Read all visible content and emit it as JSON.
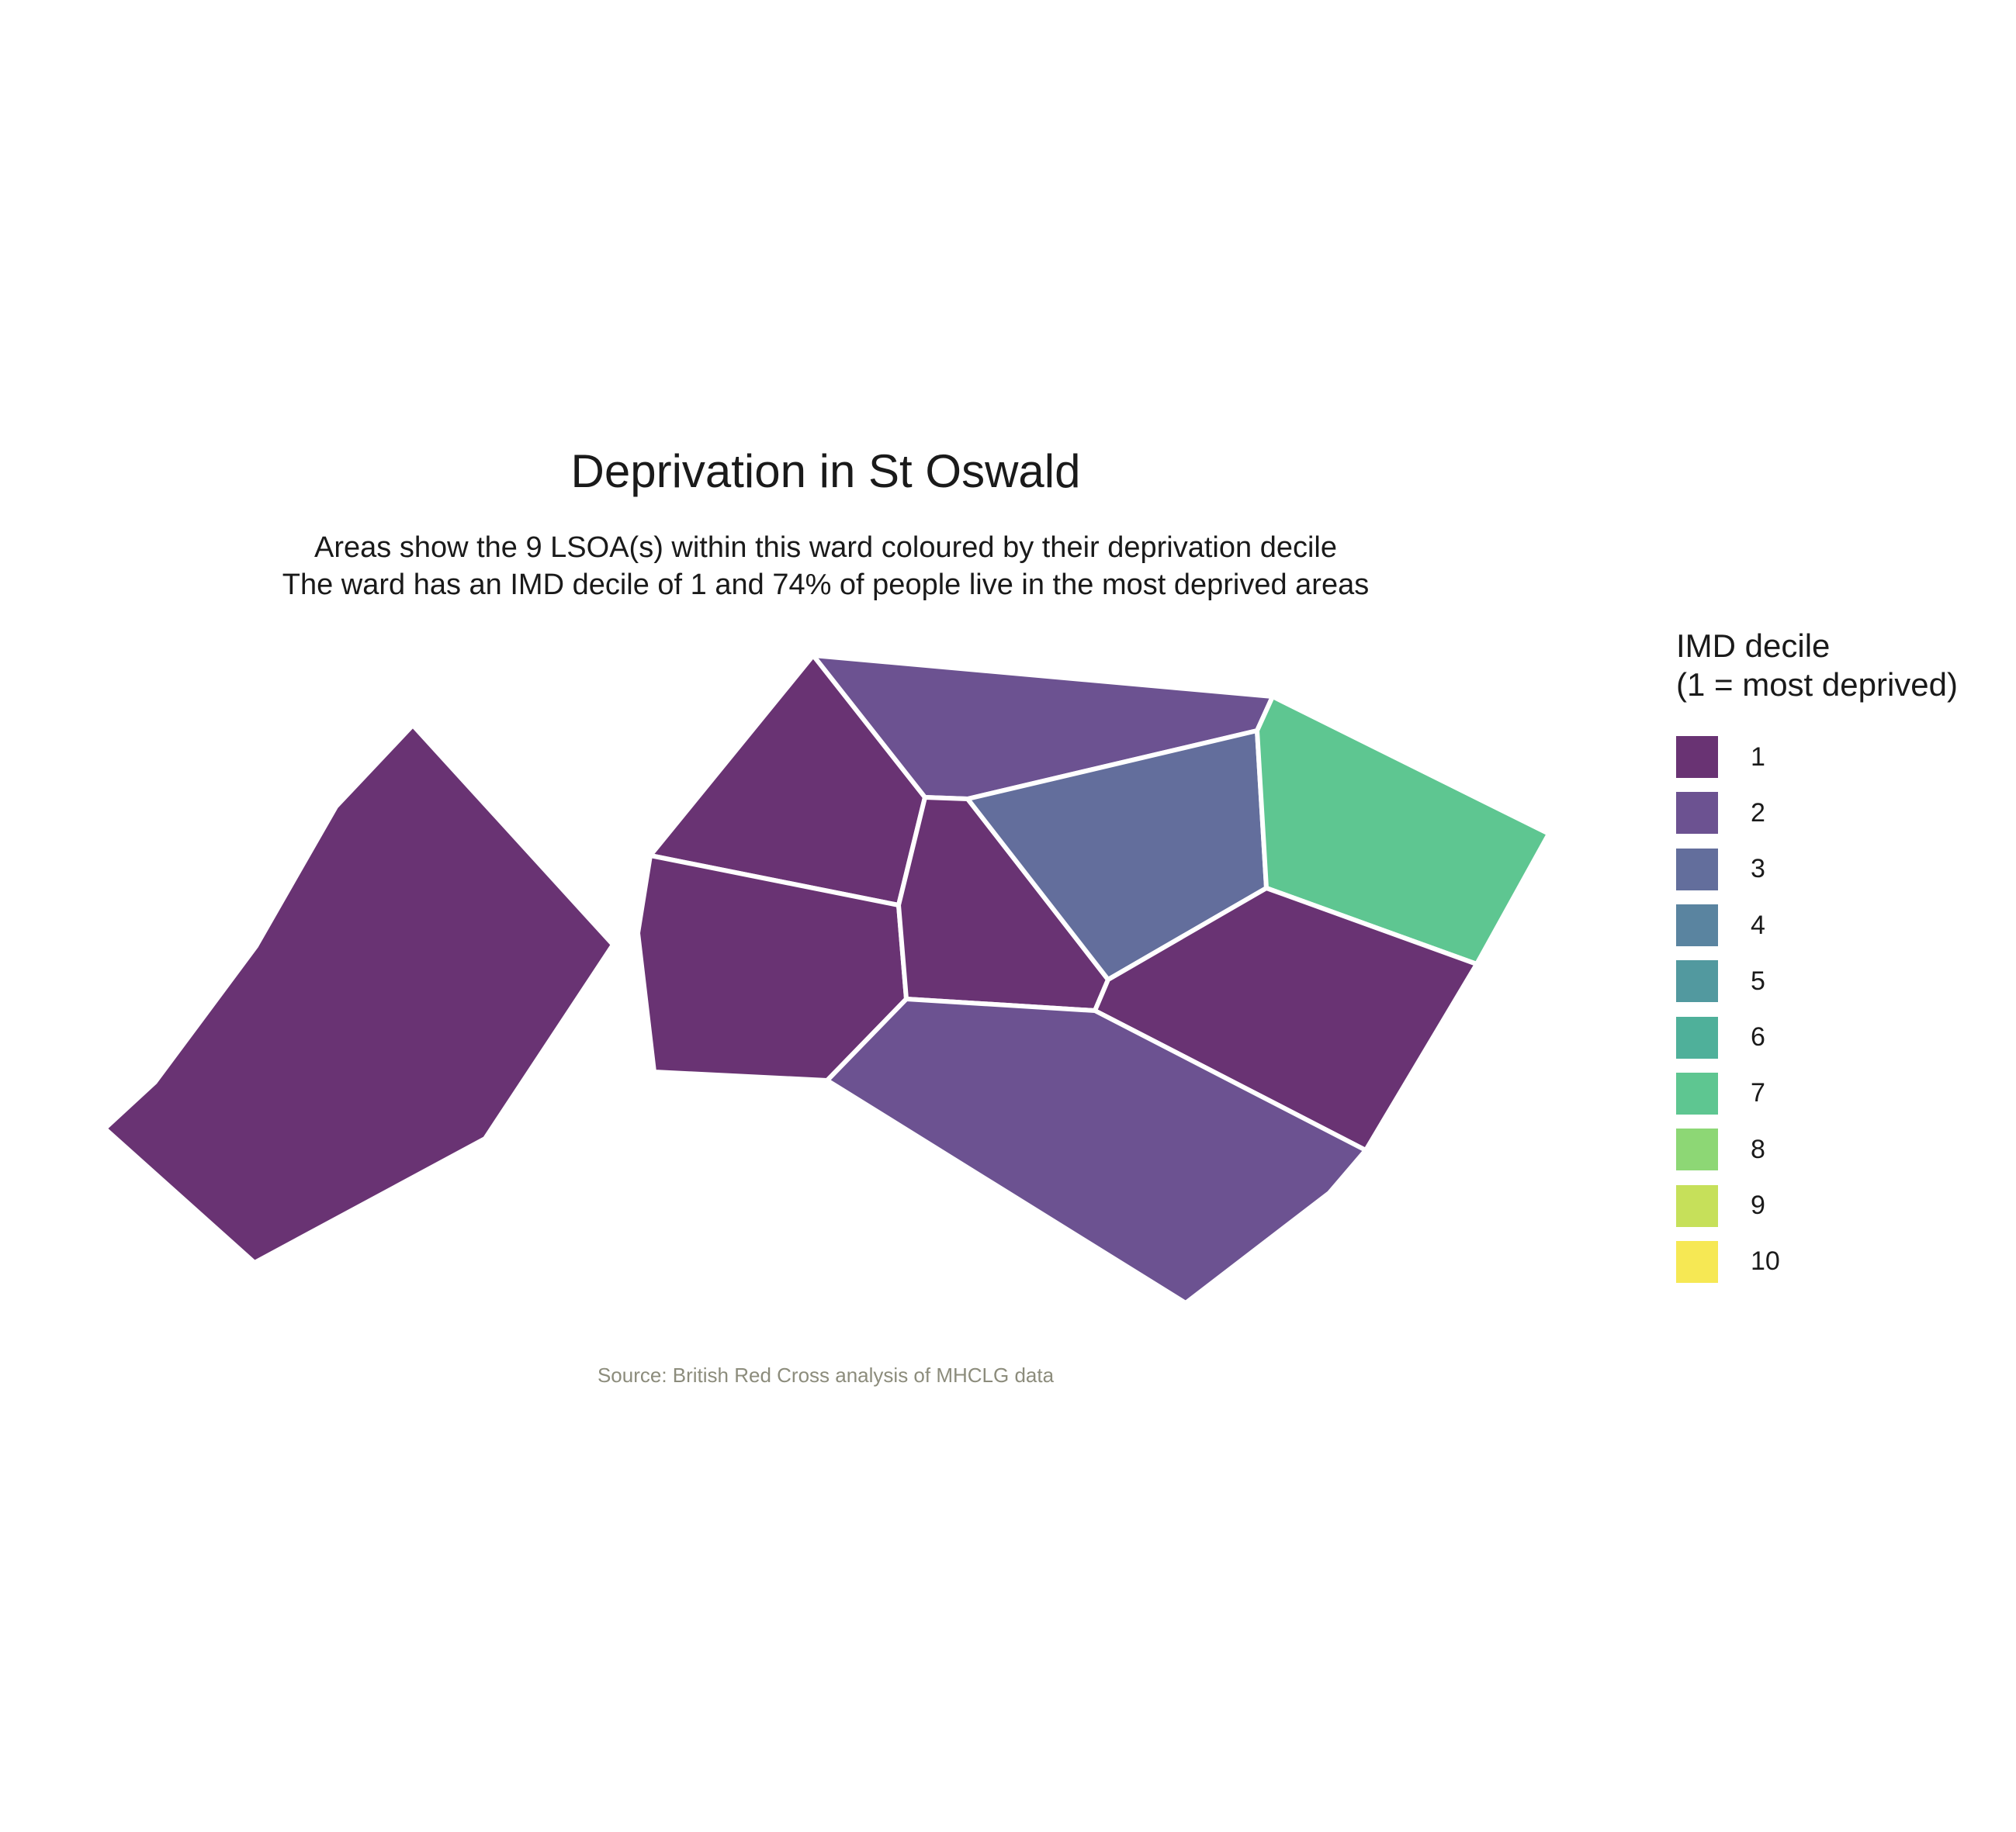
{
  "title": "Deprivation in St Oswald",
  "subtitle_line1": "Areas show the 9 LSOA(s) within this ward coloured by their deprivation decile",
  "subtitle_line2": "The ward has an IMD decile of 1 and 74% of people live in the most deprived areas",
  "caption": "Source: British Red Cross analysis of MHCLG data",
  "legend": {
    "title_line1": "IMD decile",
    "title_line2": "(1 = most deprived)",
    "items": [
      {
        "label": "1",
        "color": "#693373"
      },
      {
        "label": "2",
        "color": "#6c5291"
      },
      {
        "label": "3",
        "color": "#636e9c"
      },
      {
        "label": "4",
        "color": "#5a84a0"
      },
      {
        "label": "5",
        "color": "#52999f"
      },
      {
        "label": "6",
        "color": "#4fb09a"
      },
      {
        "label": "7",
        "color": "#5ec691"
      },
      {
        "label": "8",
        "color": "#8dd775"
      },
      {
        "label": "9",
        "color": "#c6e05a"
      },
      {
        "label": "10",
        "color": "#f6e854"
      }
    ]
  },
  "areas": [
    {
      "decile": 1
    },
    {
      "decile": 1
    },
    {
      "decile": 1
    },
    {
      "decile": 2
    },
    {
      "decile": 1
    },
    {
      "decile": 3
    },
    {
      "decile": 7
    },
    {
      "decile": 1
    },
    {
      "decile": 2
    }
  ],
  "border_color": "#ffffff"
}
